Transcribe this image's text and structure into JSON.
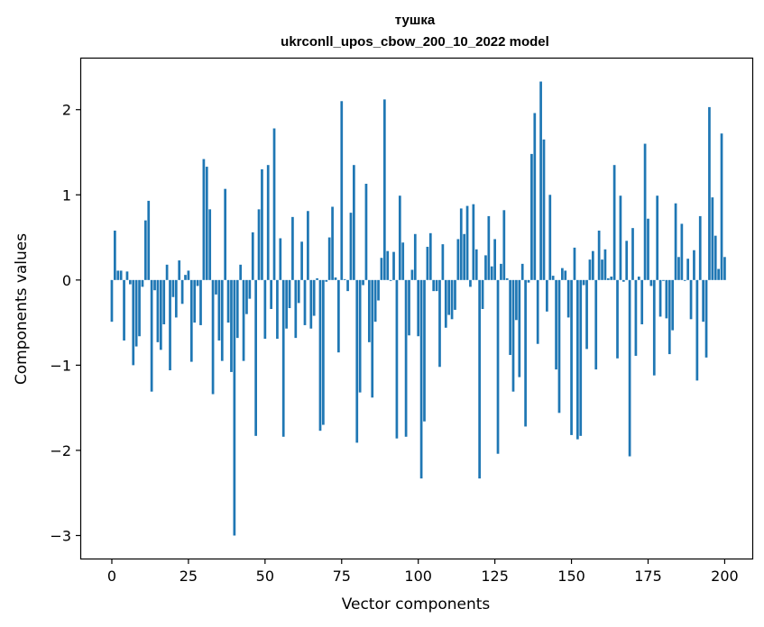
{
  "chart_data": {
    "type": "bar",
    "title": "тушка",
    "subtitle": "ukrconll_upos_cbow_200_10_2022 model",
    "xlabel": "Vector components",
    "ylabel": "Components values",
    "xlim": [
      -10,
      209
    ],
    "ylim": [
      -3.27,
      2.6
    ],
    "x_ticks": [
      0,
      25,
      50,
      75,
      100,
      125,
      150,
      175,
      200
    ],
    "y_ticks": [
      -3,
      -2,
      -1,
      0,
      1,
      2
    ],
    "x_tick_labels": [
      "0",
      "25",
      "50",
      "75",
      "100",
      "125",
      "150",
      "175",
      "200"
    ],
    "y_tick_labels": [
      "−3",
      "−2",
      "−1",
      "0",
      "1",
      "2"
    ],
    "grid": false,
    "bar_color": "#1f77b4",
    "values": [
      -0.49,
      0.58,
      0.11,
      0.11,
      -0.71,
      0.1,
      -0.05,
      -1.0,
      -0.78,
      -0.66,
      -0.08,
      0.7,
      0.93,
      -1.31,
      -0.12,
      -0.73,
      -0.82,
      -0.52,
      0.18,
      -1.06,
      -0.2,
      -0.44,
      0.23,
      -0.28,
      0.06,
      0.11,
      -0.96,
      -0.5,
      -0.07,
      -0.53,
      1.42,
      1.33,
      0.83,
      -1.34,
      -0.17,
      -0.71,
      -0.95,
      1.07,
      -0.5,
      -1.08,
      -3.0,
      -0.68,
      0.18,
      -0.95,
      -0.4,
      -0.22,
      0.56,
      -1.83,
      0.83,
      1.3,
      -0.69,
      1.35,
      -0.34,
      1.78,
      -0.69,
      0.49,
      -1.84,
      -0.57,
      -0.33,
      0.74,
      -0.68,
      -0.27,
      0.45,
      -0.53,
      0.81,
      -0.57,
      -0.42,
      0.02,
      -1.77,
      -1.7,
      -0.02,
      0.5,
      0.86,
      0.03,
      -0.85,
      2.1,
      0.01,
      -0.13,
      0.79,
      1.35,
      -1.91,
      -1.32,
      -0.06,
      1.13,
      -0.73,
      -1.38,
      -0.49,
      -0.24,
      0.26,
      2.12,
      0.34,
      -0.01,
      0.33,
      -1.86,
      0.99,
      0.44,
      -1.84,
      -0.65,
      0.12,
      0.54,
      -0.66,
      -2.33,
      -1.66,
      0.39,
      0.55,
      -0.13,
      -0.13,
      -1.02,
      0.42,
      -0.56,
      -0.41,
      -0.46,
      -0.35,
      0.48,
      0.84,
      0.54,
      0.87,
      -0.08,
      0.89,
      0.36,
      -2.33,
      -0.34,
      0.29,
      0.75,
      0.16,
      0.48,
      -2.04,
      0.19,
      0.82,
      0.02,
      -0.88,
      -1.31,
      -0.47,
      -1.14,
      0.19,
      -1.72,
      -0.03,
      1.48,
      1.96,
      -0.75,
      2.33,
      1.65,
      -0.37,
      1.0,
      0.05,
      -1.05,
      -1.56,
      0.14,
      0.11,
      -0.44,
      -1.82,
      0.38,
      -1.87,
      -1.83,
      -0.06,
      -0.81,
      0.24,
      0.34,
      -1.05,
      0.58,
      0.24,
      0.36,
      0.02,
      0.04,
      1.35,
      -0.92,
      0.99,
      -0.02,
      0.46,
      -2.07,
      0.61,
      -0.89,
      0.04,
      -0.52,
      1.6,
      0.72,
      -0.07,
      -1.12,
      0.99,
      -0.43,
      -0.01,
      -0.45,
      -0.87,
      -0.59,
      0.9,
      0.27,
      0.66,
      -0.01,
      0.25,
      -0.46,
      0.35,
      -1.18,
      0.75,
      -0.49,
      -0.91,
      2.03,
      0.97,
      0.52,
      0.13,
      1.72,
      0.27
    ]
  }
}
